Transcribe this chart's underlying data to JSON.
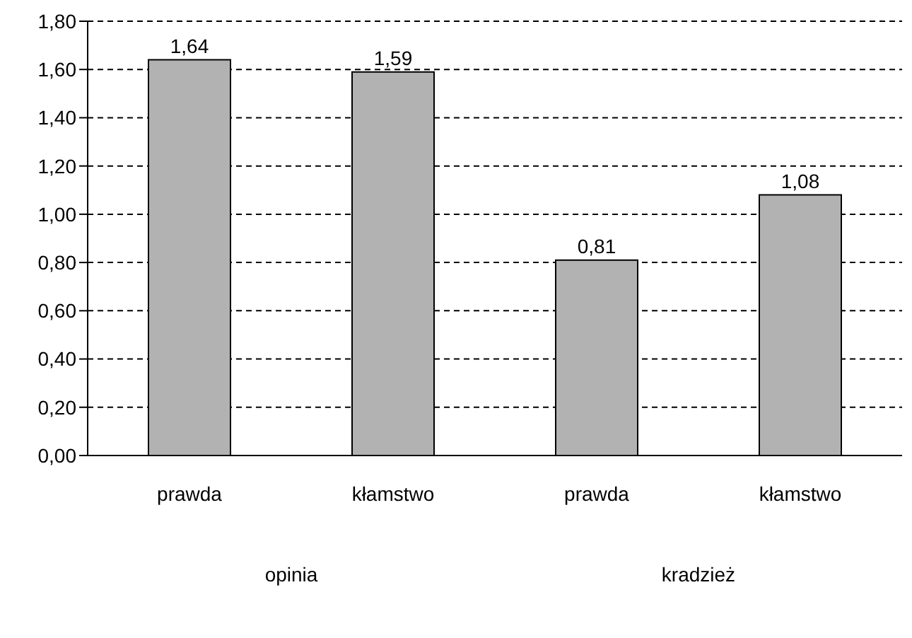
{
  "chart_data": {
    "type": "bar",
    "categories": [
      "prawda",
      "kłamstwo",
      "prawda",
      "kłamstwo"
    ],
    "values": [
      1.64,
      1.59,
      0.81,
      1.08
    ],
    "value_labels": [
      "1,64",
      "1,59",
      "0,81",
      "1,08"
    ],
    "color": "#b2b2b2",
    "ylim": [
      0,
      1.8
    ],
    "yticks": [
      {
        "value": 0,
        "label": "0,00"
      },
      {
        "value": 0.2,
        "label": "0,20"
      },
      {
        "value": 0.4,
        "label": "0,40"
      },
      {
        "value": 0.6,
        "label": "0,60"
      },
      {
        "value": 0.8,
        "label": "0,80"
      },
      {
        "value": 1.0,
        "label": "1,00"
      },
      {
        "value": 1.2,
        "label": "1,20"
      },
      {
        "value": 1.4,
        "label": "1,40"
      },
      {
        "value": 1.6,
        "label": "1,60"
      },
      {
        "value": 1.8,
        "label": "1,80"
      }
    ],
    "grid": "y",
    "annotations": [
      "opinia",
      "kradzież"
    ]
  }
}
